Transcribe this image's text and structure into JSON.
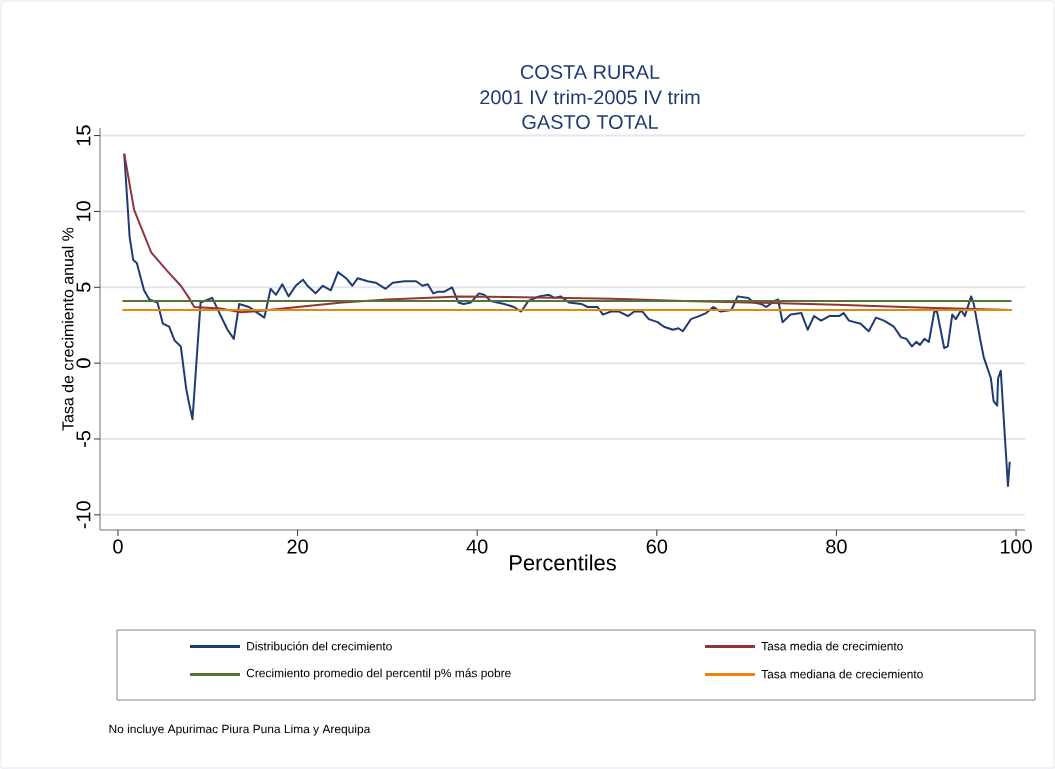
{
  "chart_data": {
    "type": "line",
    "title": "COSTA RURAL",
    "subtitle": "2001 IV trim-2005 IV trim",
    "xlabel": "Percentiles",
    "ylabel": "Tasa de crecimiento anual %",
    "annotations": [
      "GASTO TOTAL",
      "No incluye Apurimac Piura Puna Lima y Arequipa"
    ],
    "xlim": [
      -2,
      101
    ],
    "ylim": [
      -11,
      15.5
    ],
    "xticks": [
      0,
      20,
      40,
      60,
      80,
      100
    ],
    "yticks": [
      -10,
      -5,
      0,
      5,
      10,
      15
    ],
    "grid": "y",
    "legend": "bottom",
    "series": [
      {
        "name": "Distribución del crecimiento",
        "color": "#1f3b73",
        "x": [
          0.7,
          1.3,
          1.7,
          2.1,
          2.9,
          3.5,
          4.4,
          5.0,
          5.7,
          6.3,
          7.0,
          7.6,
          7.9,
          8.3,
          9.2,
          10.5,
          11.3,
          12.2,
          12.9,
          13.5,
          14.6,
          16.3,
          17.0,
          17.6,
          18.3,
          19.0,
          19.8,
          20.6,
          21.1,
          22.0,
          22.8,
          23.7,
          24.5,
          25.4,
          26.1,
          26.7,
          27.8,
          28.7,
          29.8,
          30.6,
          31.9,
          33.2,
          33.9,
          34.5,
          35.1,
          35.6,
          36.3,
          37.2,
          37.9,
          38.5,
          39.3,
          40.2,
          40.8,
          41.5,
          43.0,
          44.1,
          44.9,
          45.7,
          46.9,
          48.0,
          48.6,
          49.3,
          50.2,
          51.6,
          52.3,
          53.4,
          54.0,
          54.9,
          55.8,
          56.8,
          57.5,
          58.4,
          59.1,
          60.1,
          60.8,
          61.8,
          62.4,
          62.9,
          63.8,
          64.7,
          65.5,
          66.3,
          67.1,
          68.3,
          69.0,
          70.2,
          70.8,
          71.6,
          72.2,
          73.1,
          73.5,
          74.0,
          74.9,
          76.1,
          76.8,
          77.5,
          78.3,
          79.2,
          80.3,
          80.8,
          81.4,
          82.7,
          83.6,
          84.4,
          85.3,
          86.4,
          87.2,
          87.8,
          88.4,
          88.9,
          89.3,
          89.8,
          90.3,
          90.9,
          91.2,
          92.0,
          92.4,
          92.9,
          93.3,
          93.9,
          94.3,
          95.0,
          95.3,
          96.0,
          96.4,
          97.2,
          97.5,
          97.9,
          98.0,
          98.3,
          99.1,
          99.3
        ],
        "values": [
          13.8,
          8.3,
          6.8,
          6.6,
          4.8,
          4.2,
          4.0,
          2.6,
          2.4,
          1.5,
          1.1,
          -1.7,
          -2.6,
          -3.7,
          4.0,
          4.3,
          3.3,
          2.2,
          1.6,
          3.9,
          3.7,
          3.0,
          4.9,
          4.5,
          5.2,
          4.4,
          5.1,
          5.5,
          5.1,
          4.6,
          5.1,
          4.8,
          6.0,
          5.6,
          5.1,
          5.6,
          5.4,
          5.3,
          4.9,
          5.3,
          5.4,
          5.4,
          5.1,
          5.2,
          4.6,
          4.7,
          4.7,
          5.0,
          4.0,
          3.9,
          4.0,
          4.6,
          4.5,
          4.1,
          3.9,
          3.7,
          3.4,
          4.1,
          4.4,
          4.5,
          4.3,
          4.4,
          4.0,
          3.9,
          3.7,
          3.7,
          3.2,
          3.4,
          3.4,
          3.1,
          3.4,
          3.4,
          2.9,
          2.7,
          2.4,
          2.2,
          2.3,
          2.1,
          2.9,
          3.1,
          3.3,
          3.7,
          3.4,
          3.5,
          4.4,
          4.3,
          4.0,
          3.9,
          3.7,
          4.1,
          4.2,
          2.7,
          3.2,
          3.3,
          2.2,
          3.1,
          2.8,
          3.1,
          3.1,
          3.3,
          2.8,
          2.6,
          2.1,
          3.0,
          2.8,
          2.4,
          1.7,
          1.6,
          1.1,
          1.4,
          1.2,
          1.6,
          1.4,
          3.4,
          3.4,
          1.0,
          1.1,
          3.2,
          2.9,
          3.5,
          3.1,
          4.4,
          3.9,
          1.6,
          0.4,
          -1.0,
          -2.5,
          -2.8,
          -1.0,
          -0.5,
          -8.1,
          -6.5
        ]
      },
      {
        "name": "Tasa media de crecimiento",
        "color": "#90353b",
        "x": [
          0.7,
          1.8,
          3.7,
          5.6,
          7.0,
          7.8,
          8.5,
          11.4,
          13.7,
          16.0,
          20.0,
          25.0,
          30.0,
          38.0,
          45.0,
          55.0,
          63.0,
          70.0,
          80.0,
          90.0,
          99.5
        ],
        "values": [
          13.8,
          10.1,
          7.3,
          6.0,
          5.1,
          4.4,
          3.7,
          3.6,
          3.35,
          3.45,
          3.7,
          4.0,
          4.2,
          4.4,
          4.35,
          4.25,
          4.1,
          4.0,
          3.85,
          3.65,
          3.5
        ]
      },
      {
        "name": "Crecimiento promedio del percentil p% más pobre",
        "color": "#55752f",
        "x": [
          0.5,
          99.5
        ],
        "values": [
          4.1,
          4.1
        ]
      },
      {
        "name": "Tasa mediana de creciemiento",
        "color": "#e8850c",
        "x": [
          0.5,
          99.5
        ],
        "values": [
          3.5,
          3.5
        ]
      }
    ]
  }
}
